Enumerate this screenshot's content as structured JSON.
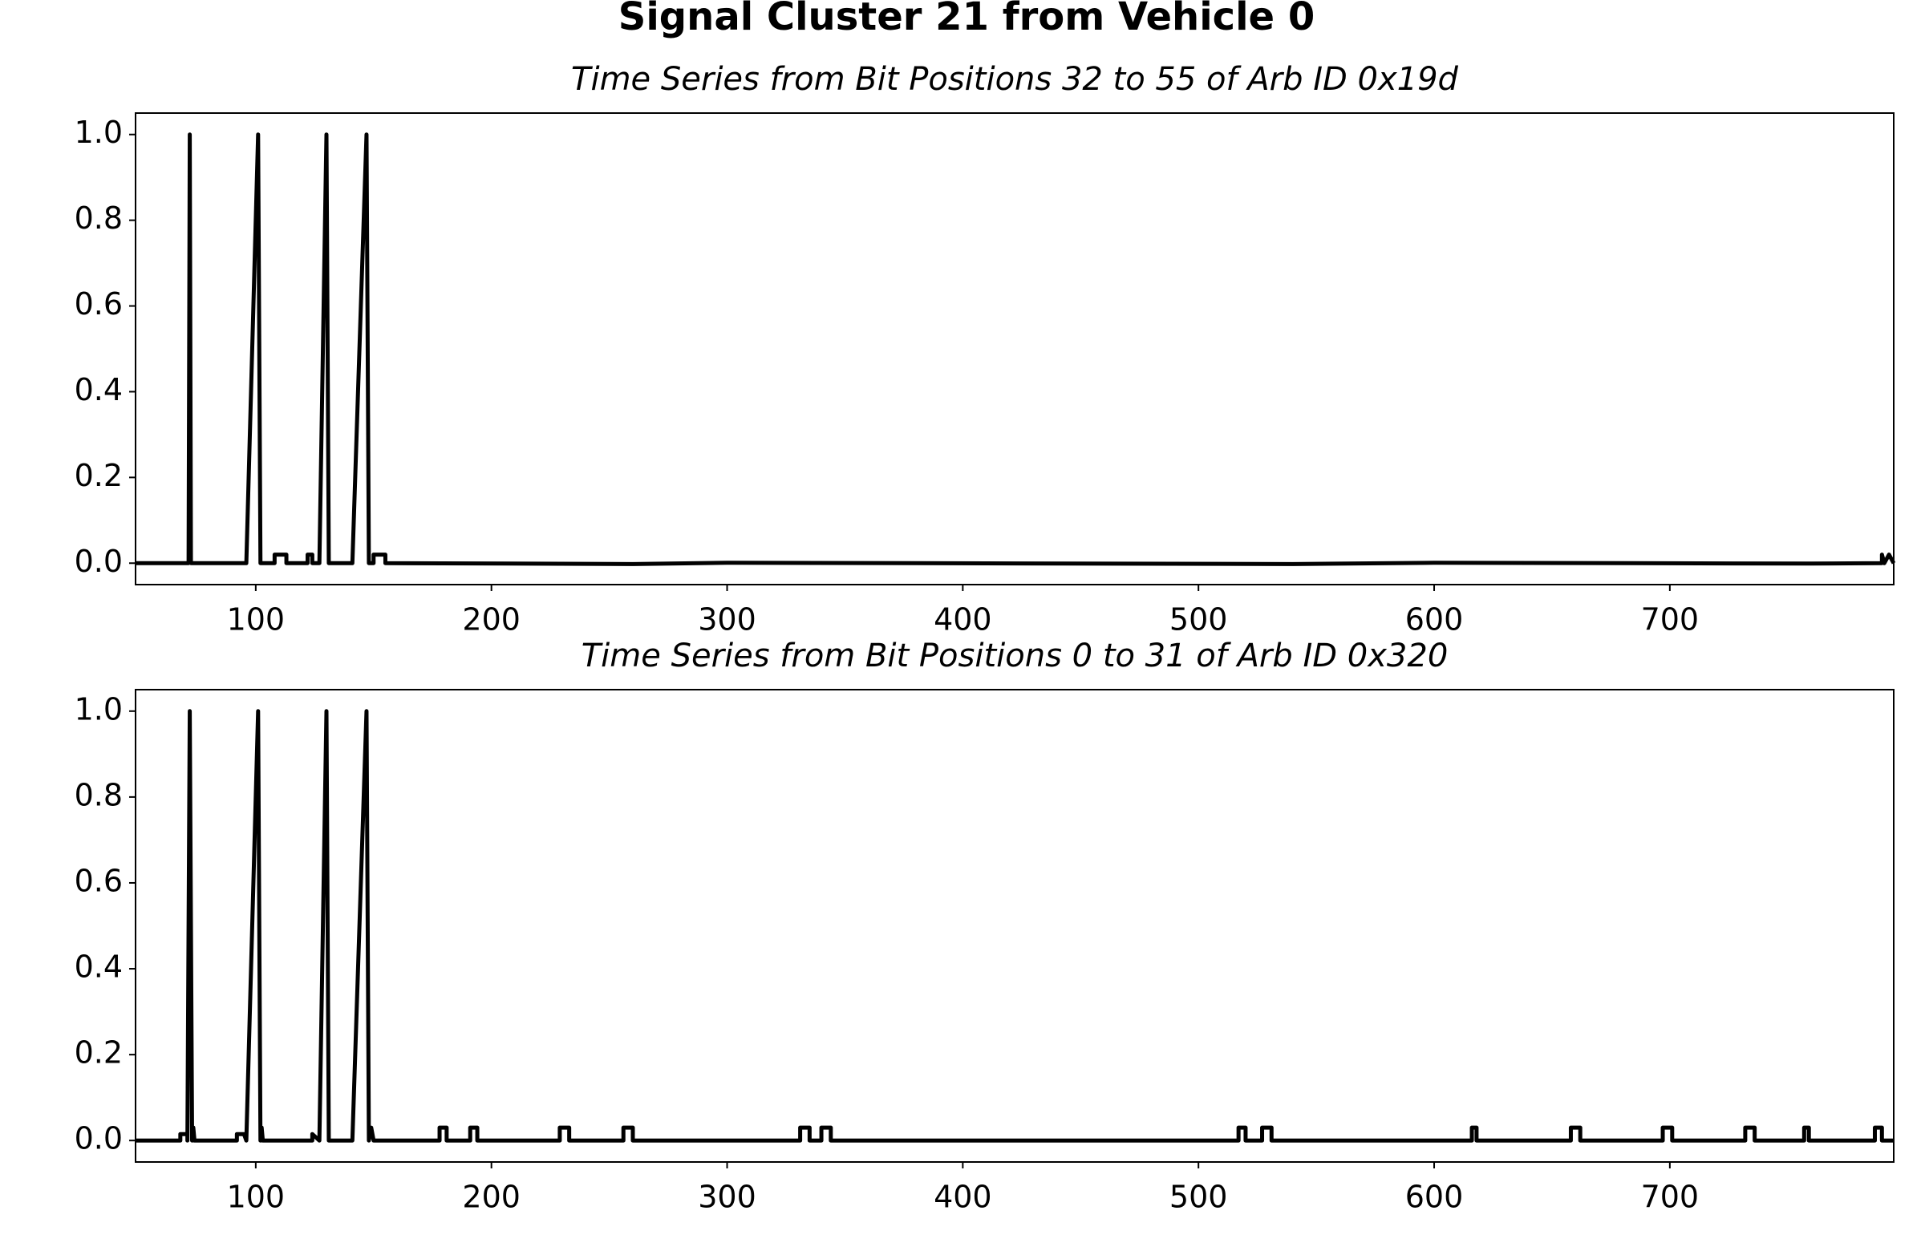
{
  "title": "Signal Cluster 21 from Vehicle 0",
  "chart_data": [
    {
      "type": "line",
      "title": "Time Series from Bit Positions 32 to 55 of Arb ID 0x19d",
      "x": [
        49,
        71.5,
        72,
        72.5,
        96,
        101,
        102,
        108,
        108,
        113,
        113,
        122,
        122,
        124,
        124,
        127,
        130,
        131,
        141,
        147,
        148,
        150,
        150,
        155,
        155,
        260,
        300,
        540,
        600,
        760,
        790,
        790,
        791,
        793,
        795
      ],
      "series": [
        {
          "color": "#000000",
          "values": [
            0,
            0,
            1,
            0,
            0,
            1,
            0,
            0,
            0.02,
            0.02,
            0,
            0,
            0.02,
            0.02,
            0,
            0,
            1,
            0,
            0,
            1,
            0,
            0,
            0.02,
            0.02,
            0,
            -0.002,
            0.001,
            -0.002,
            0.001,
            -0.001,
            0,
            0.02,
            0,
            0.02,
            0
          ]
        }
      ],
      "xlim": [
        49,
        795
      ],
      "ylim": [
        -0.05,
        1.05
      ],
      "xticks": [
        100,
        200,
        300,
        400,
        500,
        600,
        700
      ],
      "yticks": [
        {
          "value": 0,
          "label": "0.0"
        },
        {
          "value": 0.2,
          "label": "0.2"
        },
        {
          "value": 0.4,
          "label": "0.4"
        },
        {
          "value": 0.6,
          "label": "0.6"
        },
        {
          "value": 0.8,
          "label": "0.8"
        },
        {
          "value": 1,
          "label": "1.0"
        }
      ]
    },
    {
      "type": "line",
      "title": "Time Series from Bit Positions 0 to 31 of Arb ID 0x320",
      "x": [
        49,
        68,
        68,
        71,
        71,
        72,
        73,
        73.5,
        74,
        92,
        92,
        95,
        96,
        101,
        102,
        102.5,
        103,
        124,
        124,
        127,
        130,
        131,
        141,
        147,
        148,
        149,
        150,
        178,
        178,
        181,
        181,
        191,
        191,
        194,
        194,
        229,
        229,
        233,
        233,
        256,
        256,
        260,
        260,
        331,
        331,
        335,
        335,
        340,
        340,
        344,
        344,
        517,
        517,
        520,
        520,
        527,
        527,
        531,
        531,
        616,
        616,
        618,
        618,
        658,
        658,
        662,
        662,
        697,
        697,
        701,
        701,
        732,
        732,
        736,
        736,
        757,
        757,
        759,
        759,
        787,
        787,
        790,
        790,
        795
      ],
      "series": [
        {
          "color": "#000000",
          "values": [
            0,
            0,
            0.015,
            0.015,
            0,
            1,
            0,
            0.03,
            0,
            0,
            0.015,
            0.015,
            0,
            1,
            0,
            0.03,
            0,
            0,
            0.015,
            0,
            1,
            0,
            0,
            1,
            0,
            0.03,
            0,
            0,
            0.03,
            0.03,
            0,
            0,
            0.03,
            0.03,
            0,
            0,
            0.03,
            0.03,
            0,
            0,
            0.03,
            0.03,
            0,
            0,
            0.03,
            0.03,
            0,
            0,
            0.03,
            0.03,
            0,
            0,
            0.03,
            0.03,
            0,
            0,
            0.03,
            0.03,
            0,
            0,
            0.03,
            0.03,
            0,
            0,
            0.03,
            0.03,
            0,
            0,
            0.03,
            0.03,
            0,
            0,
            0.03,
            0.03,
            0,
            0,
            0.03,
            0.03,
            0,
            0,
            0.03,
            0.03,
            0,
            0
          ]
        }
      ],
      "xlim": [
        49,
        795
      ],
      "ylim": [
        -0.05,
        1.05
      ],
      "xticks": [
        100,
        200,
        300,
        400,
        500,
        600,
        700
      ],
      "yticks": [
        {
          "value": 0,
          "label": "0.0"
        },
        {
          "value": 0.2,
          "label": "0.2"
        },
        {
          "value": 0.4,
          "label": "0.4"
        },
        {
          "value": 0.6,
          "label": "0.6"
        },
        {
          "value": 0.8,
          "label": "0.8"
        },
        {
          "value": 1,
          "label": "1.0"
        }
      ]
    }
  ]
}
